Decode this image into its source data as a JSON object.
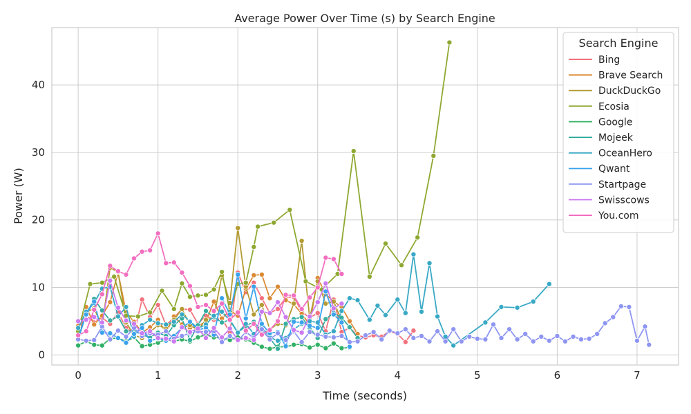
{
  "chart_data": {
    "type": "line",
    "title": "Average Power Over Time (s) by Search Engine",
    "xlabel": "Time (seconds)",
    "ylabel": "Power (W)",
    "xlim": [
      -0.33,
      7.52
    ],
    "ylim": [
      -1.5,
      48.5
    ],
    "xticks": [
      0,
      1,
      2,
      3,
      4,
      5,
      6,
      7
    ],
    "yticks": [
      0,
      10,
      20,
      30,
      40
    ],
    "grid": true,
    "legend_title": "Search Engine",
    "legend_position": "top-right",
    "marker": "circle",
    "series": [
      {
        "name": "Bing",
        "color": "#f2737e",
        "x": [
          0.0,
          0.1,
          0.2,
          0.3,
          0.4,
          0.5,
          0.6,
          0.7,
          0.8,
          0.9,
          1.0,
          1.1,
          1.2,
          1.3,
          1.4,
          1.5,
          1.6,
          1.7,
          1.8,
          1.9,
          2.0,
          2.1,
          2.2,
          2.3,
          2.4,
          2.5,
          2.6,
          2.7,
          2.8,
          2.9,
          3.0,
          3.1,
          3.2,
          3.3,
          3.4,
          3.5,
          3.6,
          3.7,
          3.8,
          3.9,
          4.0,
          4.1,
          4.2
        ],
        "y": [
          3.5,
          5.9,
          4.8,
          5.5,
          4.6,
          6.3,
          4.0,
          3.2,
          8.2,
          5.6,
          7.4,
          4.4,
          5.5,
          6.8,
          6.7,
          4.6,
          5.8,
          5.2,
          5.4,
          3.3,
          12.2,
          9.3,
          10.7,
          8.4,
          6.2,
          6.8,
          8.5,
          8.6,
          6.4,
          5.5,
          6.2,
          3.5,
          8.2,
          3.4,
          4.0,
          2.9,
          2.6,
          2.9,
          2.7,
          3.5,
          3.1,
          1.9,
          3.6
        ]
      },
      {
        "name": "Brave Search",
        "color": "#db8a35",
        "x": [
          0.0,
          0.1,
          0.2,
          0.3,
          0.4,
          0.5,
          0.6,
          0.7,
          0.8,
          0.9,
          1.0,
          1.1,
          1.2,
          1.3,
          1.4,
          1.5,
          1.6,
          1.7,
          1.8,
          1.9,
          2.0,
          2.1,
          2.2,
          2.3,
          2.4,
          2.5,
          2.6,
          2.7,
          2.8,
          2.9,
          3.0,
          3.1,
          3.2,
          3.3,
          3.4,
          3.5
        ],
        "y": [
          4.3,
          7.1,
          4.5,
          5.8,
          7.8,
          12.2,
          6.3,
          4.9,
          3.3,
          4.1,
          5.2,
          3.3,
          5.7,
          4.5,
          4.0,
          4.3,
          4.9,
          7.9,
          5.4,
          6.6,
          5.8,
          9.8,
          11.8,
          11.9,
          8.4,
          10.1,
          8.1,
          7.5,
          6.1,
          4.5,
          11.4,
          9.0,
          7.9,
          7.1,
          5.0,
          3.1
        ]
      },
      {
        "name": "DuckDuckGo",
        "color": "#b49b32",
        "x": [
          0.0,
          0.1,
          0.2,
          0.3,
          0.4,
          0.5,
          0.6,
          0.7,
          0.8,
          0.9,
          1.0,
          1.1,
          1.2,
          1.3,
          1.4,
          1.5,
          1.6,
          1.7,
          1.8,
          1.9,
          2.0,
          2.1,
          2.2,
          2.3,
          2.4,
          2.5,
          2.6,
          2.7,
          2.8,
          2.9,
          3.0,
          3.1,
          3.2,
          3.3
        ],
        "y": [
          3.9,
          6.3,
          6.9,
          4.2,
          12.9,
          12.3,
          4.8,
          2.9,
          2.5,
          3.4,
          4.4,
          3.9,
          5.2,
          6.8,
          4.4,
          3.7,
          5.2,
          5.5,
          11.8,
          7.7,
          18.8,
          10.1,
          6.0,
          7.4,
          3.8,
          4.6,
          4.4,
          7.6,
          16.9,
          5.4,
          10.9,
          7.6,
          7.9,
          5.1
        ]
      },
      {
        "name": "Ecosia",
        "color": "#8ea831",
        "x": [
          0.0,
          0.15,
          0.3,
          0.45,
          0.6,
          0.75,
          0.9,
          1.05,
          1.2,
          1.3,
          1.4,
          1.5,
          1.6,
          1.7,
          1.8,
          1.9,
          2.0,
          2.1,
          2.2,
          2.25,
          2.45,
          2.65,
          2.85,
          3.05,
          3.25,
          3.45,
          3.65,
          3.85,
          4.05,
          4.25,
          4.45,
          4.65
        ],
        "y": [
          3.5,
          10.5,
          10.7,
          11.6,
          5.8,
          5.7,
          6.3,
          9.5,
          6.8,
          10.6,
          8.6,
          8.8,
          8.9,
          9.7,
          12.3,
          6.4,
          10.5,
          10.7,
          16.0,
          19.0,
          19.6,
          21.5,
          10.9,
          9.7,
          12.0,
          30.2,
          11.6,
          16.5,
          13.3,
          17.4,
          29.5,
          46.3
        ]
      },
      {
        "name": "Google",
        "color": "#32b166",
        "x": [
          0.0,
          0.1,
          0.2,
          0.3,
          0.4,
          0.5,
          0.6,
          0.7,
          0.8,
          0.9,
          1.0,
          1.1,
          1.2,
          1.3,
          1.4,
          1.5,
          1.6,
          1.7,
          1.8,
          1.9,
          2.0,
          2.1,
          2.2,
          2.3,
          2.4,
          2.5,
          2.6,
          2.7,
          2.8,
          2.9,
          3.0,
          3.1,
          3.2,
          3.3,
          3.4
        ],
        "y": [
          1.4,
          2.0,
          1.5,
          1.4,
          2.4,
          2.5,
          2.0,
          2.6,
          1.3,
          1.5,
          1.8,
          2.3,
          2.0,
          2.3,
          2.0,
          2.6,
          3.0,
          2.6,
          2.5,
          2.2,
          2.6,
          2.3,
          1.8,
          1.2,
          0.9,
          1.2,
          1.2,
          1.5,
          1.6,
          1.1,
          1.5,
          1.0,
          1.7,
          1.0,
          1.1
        ]
      },
      {
        "name": "Mojeek",
        "color": "#36ad9f",
        "x": [
          0.0,
          0.1,
          0.2,
          0.3,
          0.4,
          0.5,
          0.6,
          0.7,
          0.8,
          0.9,
          1.0,
          1.1,
          1.2,
          1.3,
          1.4,
          1.5,
          1.6,
          1.7,
          1.8,
          1.9,
          2.0,
          2.1,
          2.2,
          2.3,
          2.4,
          2.5,
          2.6,
          2.7,
          2.8,
          2.9,
          3.0,
          3.1,
          3.2,
          3.3,
          3.4,
          3.5
        ],
        "y": [
          2.8,
          5.9,
          8.3,
          6.6,
          5.1,
          5.7,
          3.5,
          3.6,
          3.0,
          2.6,
          3.3,
          2.8,
          4.4,
          5.4,
          2.2,
          4.4,
          6.5,
          5.6,
          4.8,
          5.2,
          3.3,
          4.3,
          4.9,
          3.5,
          2.5,
          0.9,
          4.6,
          5.3,
          5.6,
          4.0,
          2.5,
          5.3,
          6.2,
          5.5,
          4.1,
          2.5
        ]
      },
      {
        "name": "OceanHero",
        "color": "#38a9c5",
        "x": [
          0.0,
          0.1,
          0.2,
          0.3,
          0.4,
          0.5,
          0.6,
          0.7,
          0.8,
          0.9,
          1.0,
          1.1,
          1.2,
          1.3,
          1.4,
          1.5,
          1.6,
          1.7,
          1.8,
          1.9,
          2.0,
          2.1,
          2.2,
          2.3,
          2.4,
          2.5,
          2.6,
          2.7,
          2.8,
          2.9,
          3.0,
          3.1,
          3.2,
          3.3,
          3.4,
          3.5,
          3.65,
          3.75,
          3.85,
          4.0,
          4.1,
          4.2,
          4.3,
          4.4,
          4.5,
          4.6,
          4.7,
          5.1,
          5.3,
          5.5,
          5.7,
          5.9
        ],
        "y": [
          4.0,
          6.4,
          7.7,
          9.8,
          10.1,
          5.7,
          7.1,
          2.7,
          4.4,
          5.2,
          4.7,
          4.5,
          4.9,
          6.0,
          5.0,
          3.9,
          4.5,
          5.8,
          6.4,
          5.1,
          3.3,
          4.6,
          3.1,
          4.2,
          2.6,
          2.1,
          2.5,
          3.8,
          4.6,
          5.0,
          4.8,
          3.0,
          3.5,
          6.5,
          8.4,
          8.1,
          5.2,
          7.3,
          5.9,
          8.2,
          6.2,
          14.9,
          6.4,
          13.6,
          5.7,
          2.7,
          1.4,
          4.8,
          7.1,
          7.0,
          7.9,
          10.5
        ]
      },
      {
        "name": "Qwant",
        "color": "#3ba3ec",
        "x": [
          0.0,
          0.1,
          0.2,
          0.3,
          0.4,
          0.5,
          0.6,
          0.7,
          0.8,
          0.9,
          1.0,
          1.1,
          1.2,
          1.3,
          1.4,
          1.5,
          1.6,
          1.7,
          1.8,
          1.9,
          2.0,
          2.1,
          2.2,
          2.3,
          2.4,
          2.5,
          2.6,
          2.7,
          2.8,
          2.9,
          3.0,
          3.1,
          3.2,
          3.3,
          3.4
        ],
        "y": [
          2.3,
          6.0,
          7.9,
          3.3,
          3.2,
          2.5,
          1.8,
          3.1,
          4.0,
          2.1,
          2.4,
          2.1,
          2.8,
          4.0,
          4.9,
          3.7,
          4.0,
          3.0,
          8.4,
          6.0,
          11.9,
          5.4,
          10.1,
          4.6,
          3.2,
          3.4,
          1.3,
          4.9,
          4.8,
          4.3,
          4.0,
          9.4,
          6.0,
          4.8,
          1.2
        ]
      },
      {
        "name": "Startpage",
        "color": "#8e95f2",
        "x": [
          0.0,
          0.1,
          0.2,
          0.3,
          0.4,
          0.5,
          0.6,
          0.7,
          0.8,
          0.9,
          1.0,
          1.1,
          1.2,
          1.3,
          1.4,
          1.5,
          1.6,
          1.7,
          1.8,
          1.9,
          2.0,
          2.1,
          2.2,
          2.3,
          2.4,
          2.5,
          2.6,
          2.7,
          2.8,
          2.9,
          3.0,
          3.1,
          3.2,
          3.3,
          3.4,
          3.5,
          3.6,
          3.7,
          3.8,
          3.9,
          4.0,
          4.1,
          4.2,
          4.3,
          4.4,
          4.5,
          4.6,
          4.7,
          4.8,
          4.9,
          5.0,
          5.1,
          5.2,
          5.3,
          5.4,
          5.5,
          5.6,
          5.7,
          5.8,
          5.9,
          6.0,
          6.1,
          6.2,
          6.3,
          6.4,
          6.5,
          6.6,
          6.7,
          6.8,
          6.9,
          7.0,
          7.1,
          7.15
        ],
        "y": [
          2.3,
          2.1,
          2.2,
          4.2,
          2.3,
          3.6,
          2.7,
          4.0,
          2.8,
          3.2,
          3.0,
          3.5,
          2.4,
          2.8,
          3.2,
          3.5,
          3.4,
          3.5,
          1.9,
          2.8,
          2.1,
          3.4,
          2.5,
          3.8,
          2.3,
          3.2,
          2.2,
          3.5,
          1.9,
          3.4,
          3.0,
          2.7,
          2.6,
          2.8,
          1.9,
          2.0,
          2.9,
          3.4,
          2.3,
          3.6,
          3.2,
          3.8,
          2.5,
          2.8,
          2.0,
          3.5,
          2.0,
          3.8,
          2.0,
          2.7,
          2.4,
          2.3,
          4.5,
          2.5,
          3.8,
          2.3,
          3.1,
          2.0,
          2.7,
          2.1,
          2.8,
          2.0,
          2.7,
          2.3,
          2.4,
          3.1,
          4.7,
          5.6,
          7.2,
          7.1,
          2.1,
          4.2,
          1.5
        ]
      },
      {
        "name": "Swisscows",
        "color": "#cc7af0",
        "x": [
          0.0,
          0.1,
          0.2,
          0.3,
          0.4,
          0.5,
          0.6,
          0.7,
          0.8,
          0.9,
          1.0,
          1.1,
          1.2,
          1.3,
          1.4,
          1.5,
          1.6,
          1.7,
          1.8,
          1.9,
          2.0,
          2.1,
          2.2,
          2.3,
          2.4,
          2.5,
          2.6,
          2.7,
          2.8,
          2.9,
          3.0,
          3.1,
          3.2,
          3.3
        ],
        "y": [
          5.0,
          5.2,
          5.6,
          4.8,
          11.0,
          7.0,
          5.1,
          4.6,
          3.2,
          3.5,
          2.5,
          2.4,
          2.0,
          4.1,
          3.4,
          3.9,
          2.5,
          4.0,
          2.6,
          3.9,
          2.2,
          2.5,
          2.2,
          6.4,
          6.2,
          7.8,
          5.6,
          3.7,
          3.3,
          5.7,
          7.8,
          10.6,
          6.9,
          7.6
        ]
      },
      {
        "name": "You.com",
        "color": "#f26ec0",
        "x": [
          0.0,
          0.1,
          0.2,
          0.3,
          0.4,
          0.5,
          0.6,
          0.7,
          0.8,
          0.9,
          1.0,
          1.1,
          1.2,
          1.3,
          1.4,
          1.5,
          1.6,
          1.7,
          1.8,
          1.9,
          2.0,
          2.1,
          2.2,
          2.3,
          2.4,
          2.5,
          2.6,
          2.7,
          2.8,
          2.9,
          3.0,
          3.1,
          3.2,
          3.3
        ],
        "y": [
          2.9,
          3.5,
          6.7,
          9.0,
          13.2,
          12.4,
          11.9,
          14.3,
          15.3,
          15.5,
          18.0,
          13.6,
          13.7,
          12.2,
          10.2,
          7.1,
          7.4,
          6.5,
          7.6,
          5.2,
          6.3,
          3.6,
          4.6,
          3.0,
          3.7,
          5.0,
          8.9,
          8.8,
          6.8,
          8.5,
          10.0,
          14.4,
          14.2,
          12.0
        ]
      }
    ]
  }
}
